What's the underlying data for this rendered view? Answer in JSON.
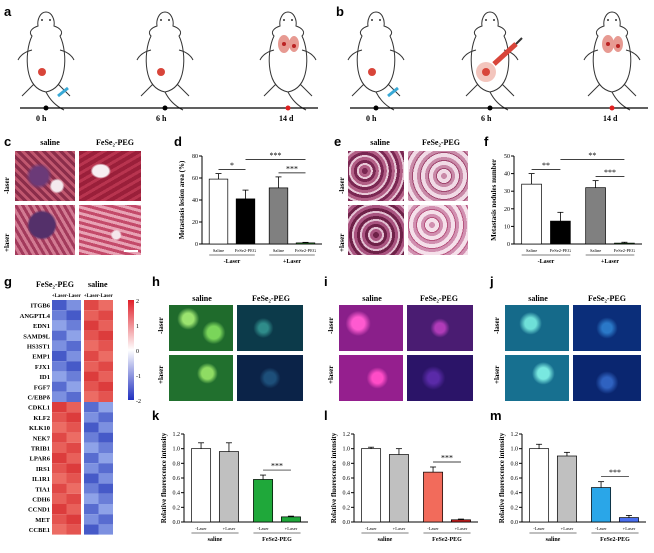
{
  "panels": {
    "a": "a",
    "b": "b",
    "c": "c",
    "d": "d",
    "e": "e",
    "f": "f",
    "g": "g",
    "h": "h",
    "i": "i",
    "j": "j",
    "k": "k",
    "l": "l",
    "m": "m"
  },
  "timeline_a": [
    "0 h",
    "6 h",
    "14 d"
  ],
  "timeline_b": [
    "0 h",
    "6 h",
    "14 d"
  ],
  "headers": {
    "saline": "saline",
    "fese2": "FeSe₂-PEG"
  },
  "rows": {
    "minus": "-laser",
    "plus": "+laser"
  },
  "chart_data": [
    {
      "id": "d",
      "type": "bar",
      "ylabel": "Metastasis lesion area (%)",
      "ylim": [
        0,
        80
      ],
      "yticks": [
        0,
        20,
        40,
        60,
        80
      ],
      "categories": [
        "Saline",
        "FeSe2-PEG",
        "Saline",
        "FeSe2-PEG"
      ],
      "groups": [
        "-Laser",
        "+Laser"
      ],
      "values": [
        59,
        41,
        51,
        1
      ],
      "errors": [
        5,
        8,
        10,
        0.5
      ],
      "colors": [
        "#ffffff",
        "#000000",
        "#808080",
        "#2ca02c"
      ],
      "significance": [
        "*",
        "***",
        "***"
      ]
    },
    {
      "id": "f",
      "type": "bar",
      "ylabel": "Metastasis nodules number",
      "ylim": [
        0,
        50
      ],
      "yticks": [
        0,
        10,
        20,
        30,
        40,
        50
      ],
      "categories": [
        "Saline",
        "FeSe2-PEG",
        "Saline",
        "FeSe2-PEG"
      ],
      "groups": [
        "-Laser",
        "+Laser"
      ],
      "values": [
        34,
        13,
        32,
        0.5
      ],
      "errors": [
        6,
        5,
        4,
        0.5
      ],
      "colors": [
        "#ffffff",
        "#000000",
        "#808080",
        "#2ca02c"
      ],
      "significance": [
        "**",
        "**",
        "***"
      ]
    },
    {
      "id": "g",
      "type": "heatmap",
      "columns": [
        "+Laser",
        "-Laser",
        "+Laser",
        "-Laser"
      ],
      "column_groups": [
        "FeSe2-PEG",
        "saline"
      ],
      "rows": [
        "ITGB6",
        "ANGPTL4",
        "EDN1",
        "SAMD9L",
        "HS3ST1",
        "EMP1",
        "FJX1",
        "ID1",
        "FGF7",
        "C/EBPδ",
        "CDKL1",
        "KLF2",
        "KLK10",
        "NEK7",
        "TRIB1",
        "LPAR6",
        "IRS1",
        "IL1R1",
        "TIA1",
        "CDH6",
        "CCND1",
        "MET",
        "CCBE1"
      ],
      "scale_ticks": [
        "2",
        "1",
        "0",
        "-1",
        "-2"
      ]
    },
    {
      "id": "k",
      "type": "bar",
      "ylabel": "Relative fluorescence intensity",
      "ylim": [
        0,
        1.2
      ],
      "yticks": [
        "0.0",
        "0.2",
        "0.4",
        "0.6",
        "0.8",
        "1.0",
        "1.2"
      ],
      "categories": [
        "-Laser",
        "+Laser",
        "-Laser",
        "+Laser"
      ],
      "groups": [
        "saline",
        "FeSe2-PEG"
      ],
      "values": [
        1.0,
        0.96,
        0.58,
        0.07
      ],
      "errors": [
        0.08,
        0.12,
        0.06,
        0.01
      ],
      "colors": [
        "#ffffff",
        "#c0c0c0",
        "#1fa83a",
        "#1fa83a"
      ],
      "significance": [
        "***"
      ]
    },
    {
      "id": "l",
      "type": "bar",
      "ylabel": "Relative fluorescence intensity",
      "ylim": [
        0,
        1.2
      ],
      "yticks": [
        "0.0",
        "0.2",
        "0.4",
        "0.6",
        "0.8",
        "1.0",
        "1.2"
      ],
      "categories": [
        "-Laser",
        "+Laser",
        "-Laser",
        "+Laser"
      ],
      "groups": [
        "saline",
        "FeSe2-PEG"
      ],
      "values": [
        1.0,
        0.92,
        0.68,
        0.03
      ],
      "errors": [
        0.02,
        0.08,
        0.07,
        0.01
      ],
      "colors": [
        "#ffffff",
        "#c0c0c0",
        "#f26b5b",
        "#d02020"
      ],
      "significance": [
        "***"
      ]
    },
    {
      "id": "m",
      "type": "bar",
      "ylabel": "Relative fluorescence intensity",
      "ylim": [
        0,
        1.2
      ],
      "yticks": [
        "0.0",
        "0.2",
        "0.4",
        "0.6",
        "0.8",
        "1.0",
        "1.2"
      ],
      "categories": [
        "-Laser",
        "+Laser",
        "-Laser",
        "+Laser"
      ],
      "groups": [
        "saline",
        "FeSe2-PEG"
      ],
      "values": [
        1.0,
        0.9,
        0.47,
        0.06
      ],
      "errors": [
        0.06,
        0.05,
        0.08,
        0.03
      ],
      "colors": [
        "#ffffff",
        "#c0c0c0",
        "#2aa6e8",
        "#4a6ff0"
      ],
      "significance": [
        "***"
      ]
    }
  ]
}
